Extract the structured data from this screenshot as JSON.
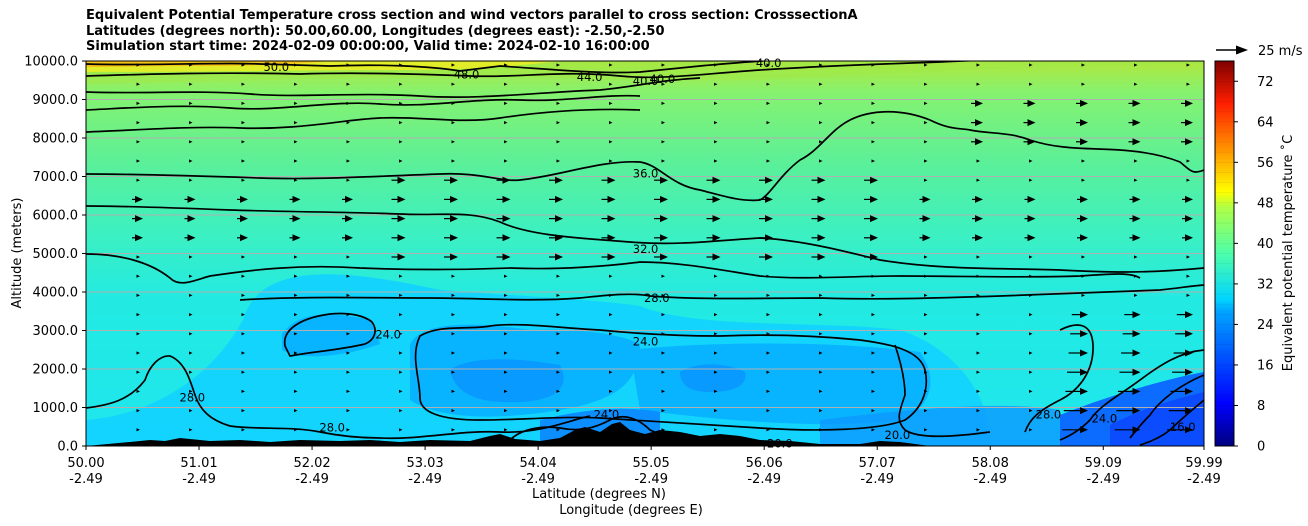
{
  "chart_data": {
    "type": "heatmap",
    "title_lines": [
      "Equivalent Potential Temperature cross section and wind vectors parallel to cross section: CrosssectionA",
      "Latitudes (degrees north): 50.00,60.00, Longitudes (degrees east): -2.50,-2.50",
      "Simulation start time: 2024-02-09 00:00:00, Valid time: 2024-02-10 16:00:00"
    ],
    "xlabel_1": "Latitude (degrees N)",
    "xlabel_2": "Longitude (degrees E)",
    "ylabel": "Altitude (meters)",
    "x_ticks": [
      {
        "lat": "50.00",
        "lon": "-2.49"
      },
      {
        "lat": "51.01",
        "lon": "-2.49"
      },
      {
        "lat": "52.02",
        "lon": "-2.49"
      },
      {
        "lat": "53.03",
        "lon": "-2.49"
      },
      {
        "lat": "54.04",
        "lon": "-2.49"
      },
      {
        "lat": "55.05",
        "lon": "-2.49"
      },
      {
        "lat": "56.06",
        "lon": "-2.49"
      },
      {
        "lat": "57.07",
        "lon": "-2.49"
      },
      {
        "lat": "58.08",
        "lon": "-2.49"
      },
      {
        "lat": "59.09",
        "lon": "-2.49"
      },
      {
        "lat": "59.99",
        "lon": "-2.49"
      }
    ],
    "y_ticks": [
      "0.0",
      "1000.0",
      "2000.0",
      "3000.0",
      "4000.0",
      "5000.0",
      "6000.0",
      "7000.0",
      "8000.0",
      "9000.0",
      "10000.0"
    ],
    "ylim": [
      0,
      10000
    ],
    "xlim": [
      50.0,
      59.99
    ],
    "grid": "horizontal",
    "colorbar": {
      "label": "Equivalent potential temperature ˚C",
      "ticks": [
        "0",
        "8",
        "16",
        "24",
        "32",
        "40",
        "48",
        "56",
        "64",
        "72"
      ],
      "range": [
        0,
        76
      ],
      "colormap": "jet"
    },
    "quiver_key": {
      "label": "25 m/s"
    },
    "contour_labels": [
      {
        "text": "50.0",
        "lat": 51.7,
        "alt": 9850
      },
      {
        "text": "48.0",
        "lat": 53.4,
        "alt": 9650
      },
      {
        "text": "44.0",
        "lat": 54.5,
        "alt": 9580
      },
      {
        "text": "40.0",
        "lat": 55.0,
        "alt": 9480
      },
      {
        "text": "40.0",
        "lat": 55.15,
        "alt": 9530
      },
      {
        "text": "40.0",
        "lat": 56.1,
        "alt": 9950
      },
      {
        "text": "36.0",
        "lat": 55.0,
        "alt": 7080
      },
      {
        "text": "32.0",
        "lat": 55.0,
        "alt": 5120
      },
      {
        "text": "28.0",
        "lat": 55.1,
        "alt": 3840
      },
      {
        "text": "24.0",
        "lat": 55.0,
        "alt": 2720
      },
      {
        "text": "24.0",
        "lat": 52.7,
        "alt": 2900
      },
      {
        "text": "28.0",
        "lat": 50.95,
        "alt": 1260
      },
      {
        "text": "28.0",
        "lat": 52.2,
        "alt": 480
      },
      {
        "text": "28.0",
        "lat": 58.6,
        "alt": 820
      },
      {
        "text": "24.0",
        "lat": 59.1,
        "alt": 720
      },
      {
        "text": "16.0",
        "lat": 59.8,
        "alt": 500
      },
      {
        "text": "24.0",
        "lat": 54.65,
        "alt": 820
      },
      {
        "text": "20.0",
        "lat": 56.2,
        "alt": 60
      },
      {
        "text": "20.0",
        "lat": 57.25,
        "alt": 280
      }
    ],
    "wind_direction": "parallel to cross section, mostly northward aloft, weak near surface"
  }
}
